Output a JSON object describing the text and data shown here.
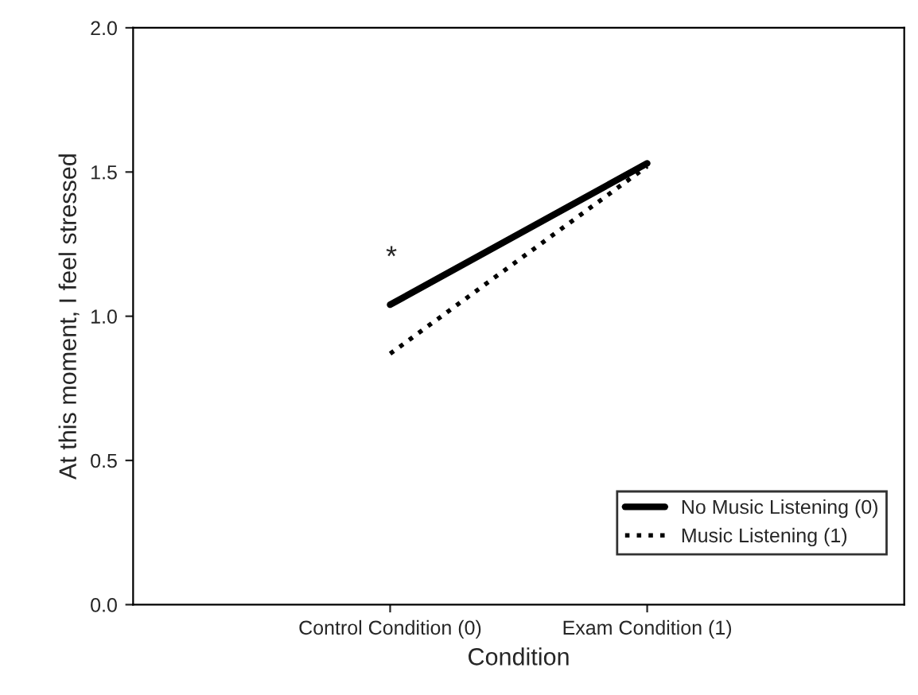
{
  "chart_data": {
    "type": "line",
    "xlabel": "Condition",
    "ylabel": "At this moment, I feel stressed",
    "categories": [
      "Control Condition (0)",
      "Exam Condition (1)"
    ],
    "series": [
      {
        "name": "No Music Listening (0)",
        "color": "#000000",
        "values": [
          1.04,
          1.53
        ],
        "line_style": "solid"
      },
      {
        "name": "Music Listening (1)",
        "color": "#000000",
        "values": [
          0.87,
          1.52
        ],
        "line_style": "dotted"
      }
    ],
    "ylim": [
      0,
      2.0
    ],
    "yticks": [
      {
        "value": 0,
        "label": "0.0"
      },
      {
        "value": 0.5,
        "label": "0.5"
      },
      {
        "value": 1.0,
        "label": "1.0"
      },
      {
        "value": 1.5,
        "label": "1.5"
      },
      {
        "value": 2.0,
        "label": "2.0"
      }
    ],
    "annotations": [
      "*"
    ],
    "legend": "bottom right",
    "grid": false,
    "marker": "none"
  }
}
